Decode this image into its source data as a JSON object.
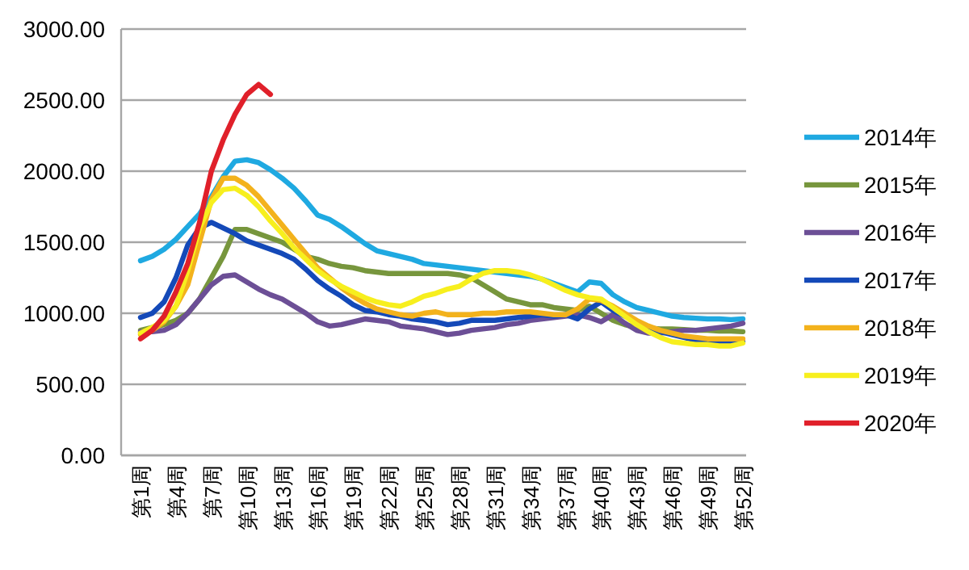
{
  "chart_data": {
    "type": "line",
    "categories": [
      "第1周",
      null,
      null,
      "第4周",
      null,
      null,
      "第7周",
      null,
      null,
      "第10周",
      null,
      null,
      "第13周",
      null,
      null,
      "第16周",
      null,
      null,
      "第19周",
      null,
      null,
      "第22周",
      null,
      null,
      "第25周",
      null,
      null,
      "第28周",
      null,
      null,
      "第31周",
      null,
      null,
      "第34周",
      null,
      null,
      "第37周",
      null,
      null,
      "第40周",
      null,
      null,
      "第43周",
      null,
      null,
      "第46周",
      null,
      null,
      "第49周",
      null,
      null,
      "第52周"
    ],
    "ylim": [
      0,
      3000
    ],
    "yticks": [
      {
        "value": 0,
        "label": "0.00"
      },
      {
        "value": 500,
        "label": "500.00"
      },
      {
        "value": 1000,
        "label": "1000.00"
      },
      {
        "value": 1500,
        "label": "1500.00"
      },
      {
        "value": 2000,
        "label": "2000.00"
      },
      {
        "value": 2500,
        "label": "2500.00"
      },
      {
        "value": 3000,
        "label": "3000.00"
      }
    ],
    "grid": "y",
    "legend": "right",
    "marker": "none",
    "line_style": "solid",
    "series": [
      {
        "name": "2014年",
        "color": "#1fa9e1",
        "values": [
          1370,
          1400,
          1450,
          1520,
          1610,
          1700,
          1820,
          1960,
          2070,
          2080,
          2060,
          2010,
          1950,
          1880,
          1790,
          1690,
          1660,
          1610,
          1550,
          1490,
          1440,
          1420,
          1400,
          1380,
          1350,
          1340,
          1330,
          1320,
          1310,
          1300,
          1290,
          1280,
          1270,
          1260,
          1240,
          1210,
          1180,
          1150,
          1220,
          1210,
          1130,
          1080,
          1040,
          1020,
          1000,
          980,
          970,
          965,
          960,
          960,
          955,
          960
        ]
      },
      {
        "name": "2015年",
        "color": "#77963d",
        "values": [
          880,
          900,
          920,
          950,
          1000,
          1100,
          1250,
          1400,
          1590,
          1590,
          1560,
          1530,
          1500,
          1450,
          1400,
          1380,
          1350,
          1330,
          1320,
          1300,
          1290,
          1280,
          1280,
          1280,
          1280,
          1280,
          1280,
          1270,
          1250,
          1200,
          1150,
          1100,
          1080,
          1060,
          1060,
          1040,
          1030,
          1020,
          1050,
          1000,
          950,
          920,
          900,
          895,
          890,
          890,
          885,
          880,
          880,
          875,
          875,
          870
        ]
      },
      {
        "name": "2016年",
        "color": "#6c4f96",
        "values": [
          870,
          870,
          880,
          920,
          1000,
          1100,
          1200,
          1260,
          1270,
          1220,
          1170,
          1130,
          1100,
          1050,
          1000,
          940,
          910,
          920,
          940,
          960,
          950,
          940,
          910,
          900,
          890,
          870,
          850,
          860,
          880,
          890,
          900,
          920,
          930,
          950,
          960,
          970,
          980,
          990,
          970,
          940,
          990,
          930,
          880,
          860,
          860,
          870,
          880,
          880,
          890,
          900,
          910,
          930
        ]
      },
      {
        "name": "2017年",
        "color": "#1449b8",
        "values": [
          970,
          1000,
          1080,
          1250,
          1480,
          1600,
          1640,
          1600,
          1560,
          1510,
          1480,
          1450,
          1420,
          1380,
          1310,
          1230,
          1170,
          1120,
          1060,
          1020,
          1010,
          990,
          980,
          960,
          950,
          940,
          920,
          930,
          950,
          950,
          950,
          960,
          970,
          980,
          990,
          980,
          990,
          960,
          1030,
          1080,
          1020,
          980,
          940,
          900,
          870,
          850,
          830,
          810,
          800,
          800,
          800,
          800
        ]
      },
      {
        "name": "2018年",
        "color": "#f3b21c",
        "values": [
          850,
          880,
          940,
          1050,
          1200,
          1500,
          1800,
          1950,
          1950,
          1900,
          1820,
          1720,
          1620,
          1520,
          1420,
          1320,
          1250,
          1180,
          1120,
          1070,
          1030,
          1010,
          990,
          980,
          1000,
          1010,
          990,
          990,
          990,
          1000,
          1000,
          1010,
          1010,
          1010,
          1000,
          990,
          990,
          1030,
          1100,
          1090,
          1050,
          1000,
          950,
          910,
          880,
          860,
          840,
          830,
          820,
          820,
          820,
          820
        ]
      },
      {
        "name": "2019年",
        "color": "#f7ef1e",
        "values": [
          860,
          900,
          950,
          1050,
          1300,
          1600,
          1780,
          1870,
          1880,
          1830,
          1750,
          1650,
          1560,
          1460,
          1380,
          1300,
          1240,
          1190,
          1150,
          1110,
          1080,
          1060,
          1050,
          1080,
          1120,
          1140,
          1170,
          1190,
          1240,
          1280,
          1300,
          1300,
          1290,
          1270,
          1240,
          1200,
          1160,
          1130,
          1110,
          1100,
          1040,
          980,
          920,
          870,
          830,
          800,
          790,
          780,
          780,
          770,
          770,
          790
        ]
      },
      {
        "name": "2020年",
        "color": "#e0202a",
        "values": [
          820,
          880,
          980,
          1150,
          1350,
          1640,
          2000,
          2220,
          2400,
          2540,
          2610,
          2540,
          null,
          null,
          null,
          null,
          null,
          null,
          null,
          null,
          null,
          null,
          null,
          null,
          null,
          null,
          null,
          null,
          null,
          null,
          null,
          null,
          null,
          null,
          null,
          null,
          null,
          null,
          null,
          null,
          null,
          null,
          null,
          null,
          null,
          null,
          null,
          null,
          null,
          null,
          null,
          null
        ]
      }
    ]
  }
}
